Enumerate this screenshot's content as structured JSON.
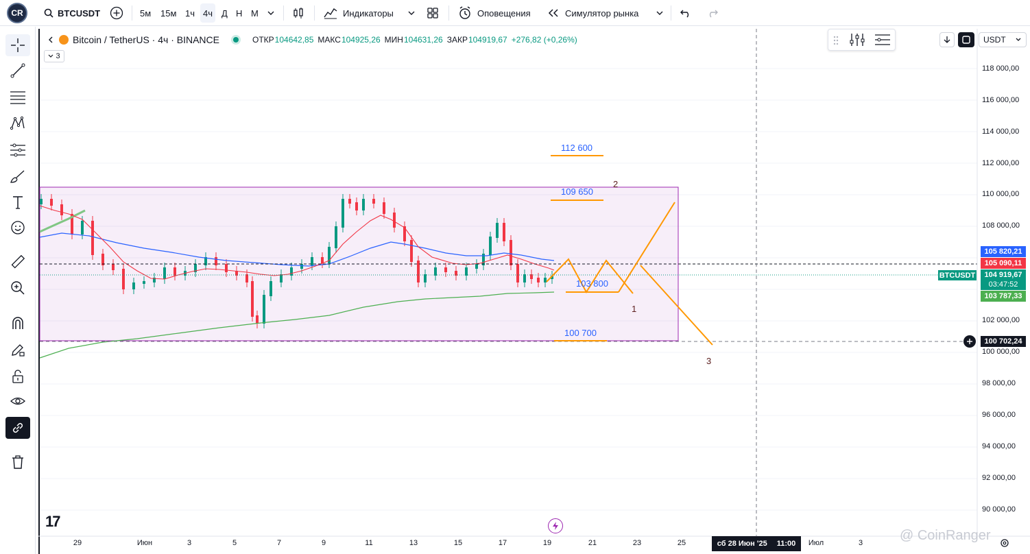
{
  "topbar": {
    "logo_text": "CR",
    "symbol": "BTCUSDT",
    "intervals": [
      "5м",
      "15м",
      "1ч",
      "4ч",
      "Д",
      "Н",
      "М"
    ],
    "active_interval": "4ч",
    "indicators_label": "Индикаторы",
    "alerts_label": "Оповещения",
    "replay_label": "Симулятор рынка"
  },
  "legend": {
    "title": "Bitcoin / TetherUS · 4ч · BINANCE",
    "open_label": "ОТКР",
    "open_value": "104642,85",
    "high_label": "МАКС",
    "high_value": "104925,26",
    "low_label": "МИН",
    "low_value": "104631,26",
    "close_label": "ЗАКР",
    "close_value": "104919,67",
    "change": "+276,82 (+0,26%)",
    "indicator_count": "3"
  },
  "currency_select": "USDT",
  "price_axis": {
    "labels": [
      "118 000,00",
      "116 000,00",
      "114 000,00",
      "112 000,00",
      "110 000,00",
      "108 000,00",
      "102 000,00",
      "100 000,00",
      "98 000,00",
      "96 000,00",
      "94 000,00",
      "92 000,00",
      "90 000,00"
    ],
    "tags": [
      {
        "text": "105 820,21",
        "color": "#2962ff"
      },
      {
        "text": "105 090,11",
        "color": "#f23645"
      },
      {
        "text": "104 919,67",
        "color": "#089981"
      },
      {
        "text": "03:47:52",
        "color": "#089981"
      },
      {
        "text": "103 787,33",
        "color": "#4caf50"
      },
      {
        "text": "100 702,24",
        "color": "#131722"
      }
    ],
    "symbol_tag": "BTCUSDT"
  },
  "time_axis": {
    "labels": [
      "29",
      "Июн",
      "3",
      "5",
      "7",
      "9",
      "11",
      "13",
      "15",
      "17",
      "19",
      "21",
      "23",
      "25",
      "Июл",
      "3"
    ],
    "crosshair_date": "сб 28 Июн '25",
    "crosshair_time": "11:00"
  },
  "annotations": {
    "level_112600": "112 600",
    "level_109650": "109 650",
    "level_103800": "103 800",
    "level_100700": "100 700",
    "wave_1": "1",
    "wave_2": "2",
    "wave_3": "3"
  },
  "watermark": "@ CoinRanger",
  "tv_logo": "17",
  "colors": {
    "up": "#089981",
    "down": "#f23645",
    "ma_fast": "#f23645",
    "ma_mid": "#2962ff",
    "ma_slow": "#4caf50",
    "range_box": "#9c27b0",
    "projection": "#ff9800",
    "level_text": "#2962ff"
  }
}
